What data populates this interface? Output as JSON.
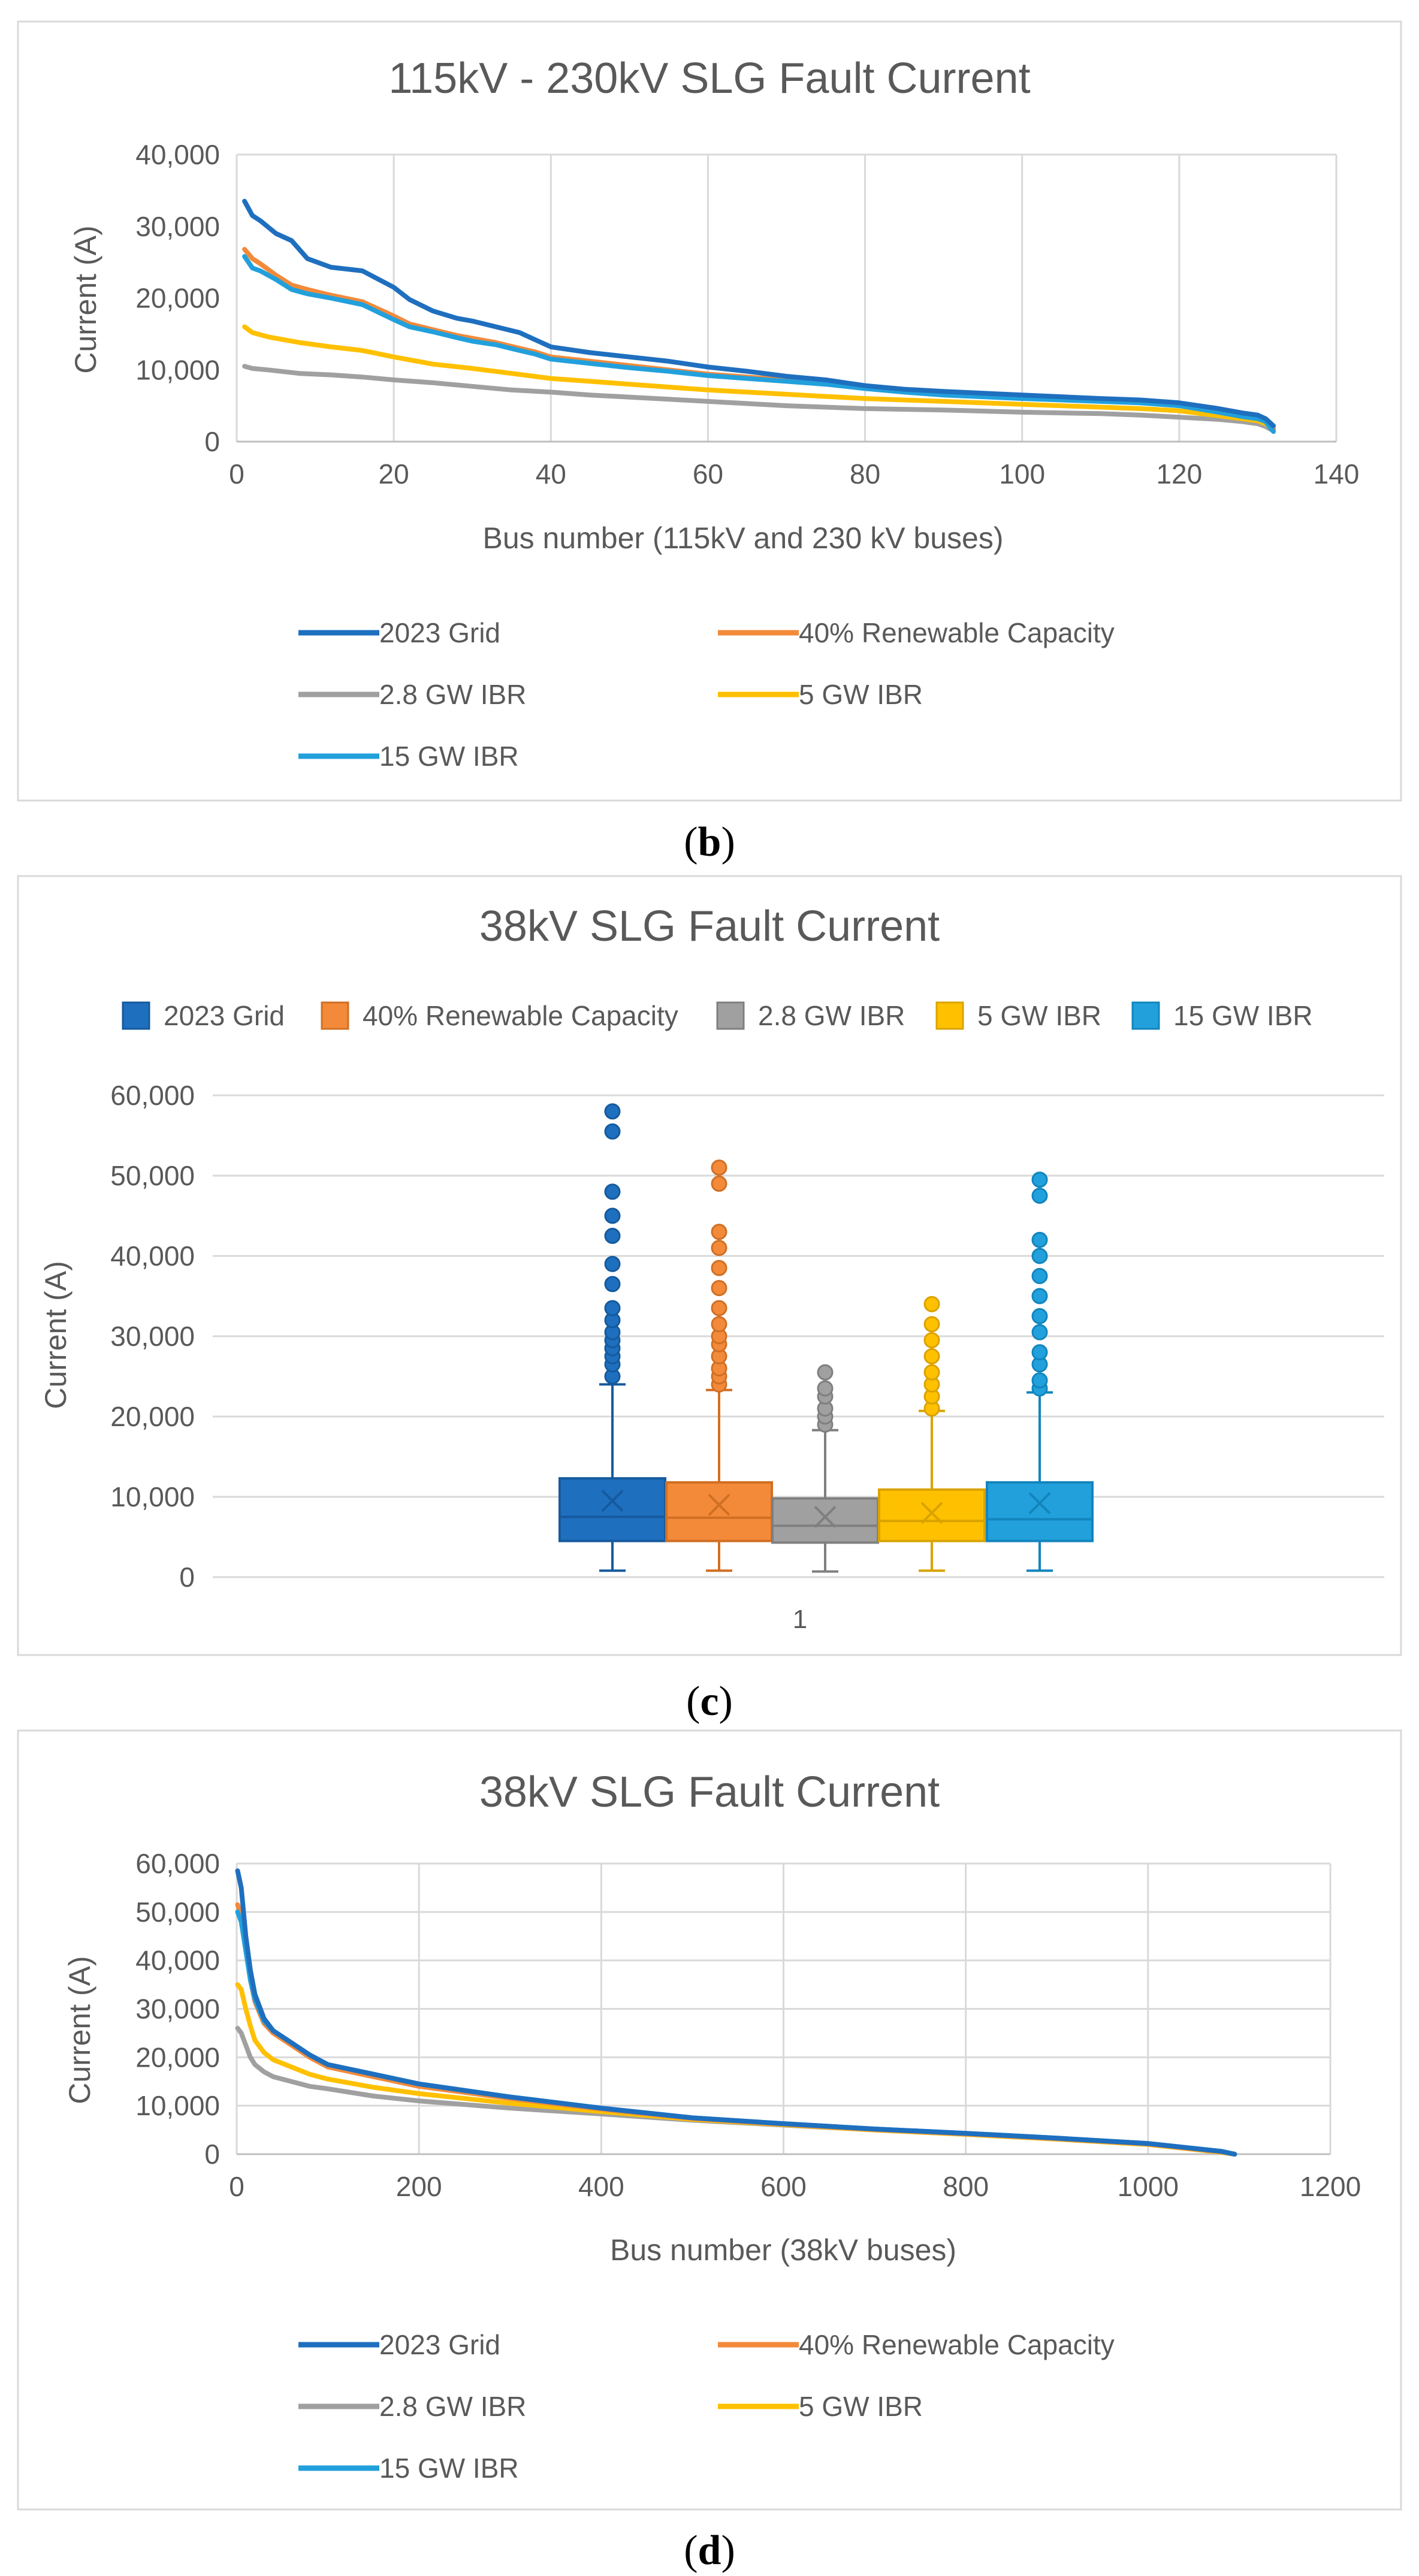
{
  "chart_data": [
    {
      "type": "line",
      "panel_label": "b",
      "title": "115kV - 230kV SLG Fault Current",
      "xlabel": "Bus number (115kV and 230 kV buses)",
      "ylabel": "Current (A)",
      "xlim": [
        0,
        140
      ],
      "ylim": [
        0,
        40000
      ],
      "xticks": [
        0,
        20,
        40,
        60,
        80,
        100,
        120,
        140
      ],
      "yticks": [
        0,
        10000,
        20000,
        30000,
        40000
      ],
      "ytick_labels": [
        "0",
        "10,000",
        "20,000",
        "30,000",
        "40,000"
      ],
      "grid": "vertical",
      "legend_position": "bottom",
      "series": [
        {
          "name": "2023 Grid",
          "color": "#1f6fbf",
          "x": [
            1,
            2,
            3,
            5,
            7,
            9,
            12,
            16,
            20,
            22,
            25,
            28,
            30,
            33,
            36,
            38,
            40,
            45,
            50,
            55,
            60,
            65,
            70,
            75,
            80,
            85,
            90,
            100,
            110,
            115,
            120,
            125,
            128,
            130,
            131,
            132
          ],
          "y": [
            33500,
            31500,
            30800,
            29000,
            28000,
            25500,
            24300,
            23800,
            21500,
            19800,
            18200,
            17200,
            16800,
            16000,
            15200,
            14200,
            13200,
            12400,
            11800,
            11200,
            10400,
            9800,
            9100,
            8600,
            7800,
            7300,
            7000,
            6500,
            6000,
            5800,
            5400,
            4600,
            4000,
            3700,
            3200,
            2200
          ]
        },
        {
          "name": "40% Renewable Capacity",
          "color": "#f28a3a",
          "x": [
            1,
            2,
            3,
            5,
            7,
            9,
            12,
            16,
            20,
            22,
            25,
            28,
            30,
            33,
            36,
            38,
            40,
            45,
            50,
            55,
            60,
            65,
            70,
            75,
            80,
            85,
            90,
            100,
            110,
            115,
            120,
            125,
            128,
            130,
            131,
            132
          ],
          "y": [
            26800,
            25500,
            24800,
            23200,
            21800,
            21200,
            20400,
            19500,
            17500,
            16400,
            15600,
            14800,
            14400,
            13800,
            13000,
            12500,
            11800,
            11200,
            10600,
            10000,
            9400,
            9000,
            8600,
            8200,
            7600,
            7100,
            6700,
            6200,
            5800,
            5600,
            5200,
            4300,
            3700,
            3400,
            3000,
            1700
          ]
        },
        {
          "name": "2.8 GW IBR",
          "color": "#a0a0a0",
          "x": [
            1,
            2,
            4,
            8,
            12,
            16,
            20,
            25,
            30,
            35,
            40,
            45,
            50,
            55,
            60,
            65,
            70,
            75,
            80,
            90,
            100,
            110,
            115,
            120,
            125,
            128,
            130,
            131,
            132
          ],
          "y": [
            10500,
            10200,
            10000,
            9500,
            9300,
            9000,
            8600,
            8200,
            7700,
            7200,
            6900,
            6500,
            6200,
            5900,
            5600,
            5300,
            5000,
            4800,
            4600,
            4400,
            4100,
            3900,
            3700,
            3400,
            3100,
            2800,
            2500,
            2100,
            1500
          ]
        },
        {
          "name": "5 GW IBR",
          "color": "#ffc000",
          "x": [
            1,
            2,
            4,
            8,
            12,
            16,
            20,
            25,
            30,
            35,
            40,
            45,
            50,
            55,
            60,
            65,
            70,
            75,
            80,
            90,
            100,
            110,
            115,
            120,
            125,
            128,
            130,
            131,
            132
          ],
          "y": [
            16000,
            15200,
            14600,
            13800,
            13200,
            12700,
            11800,
            10800,
            10200,
            9500,
            8800,
            8400,
            8000,
            7600,
            7200,
            6900,
            6600,
            6300,
            6000,
            5600,
            5200,
            4800,
            4600,
            4300,
            3600,
            3200,
            2900,
            2500,
            1800
          ]
        },
        {
          "name": "15 GW IBR",
          "color": "#22a0dc",
          "x": [
            1,
            2,
            3,
            5,
            7,
            9,
            12,
            16,
            20,
            22,
            25,
            28,
            30,
            33,
            36,
            38,
            40,
            45,
            50,
            55,
            60,
            65,
            70,
            75,
            80,
            85,
            90,
            100,
            110,
            115,
            120,
            125,
            128,
            130,
            131,
            132
          ],
          "y": [
            25800,
            24200,
            23800,
            22600,
            21200,
            20600,
            20000,
            19100,
            17000,
            16000,
            15300,
            14500,
            14000,
            13500,
            12700,
            12200,
            11500,
            10900,
            10300,
            9800,
            9200,
            8800,
            8400,
            8000,
            7400,
            6900,
            6500,
            6000,
            5600,
            5400,
            5000,
            4100,
            3500,
            3200,
            2800,
            1400
          ]
        }
      ]
    },
    {
      "type": "box",
      "panel_label": "c",
      "title": "38kV SLG Fault Current",
      "xlabel": "1",
      "ylabel": "Current (A)",
      "ylim": [
        0,
        60000
      ],
      "yticks": [
        0,
        10000,
        20000,
        30000,
        40000,
        50000,
        60000
      ],
      "ytick_labels": [
        "0",
        "10,000",
        "20,000",
        "30,000",
        "40,000",
        "50,000",
        "60,000"
      ],
      "grid": "horizontal",
      "legend_position": "top",
      "series": [
        {
          "name": "2023 Grid",
          "color": "#1f6fbf",
          "min": 800,
          "q1": 4500,
          "median": 7500,
          "q3": 12300,
          "max": 24000,
          "mean": 9500,
          "outliers": [
            25000,
            26500,
            27500,
            28500,
            29500,
            30500,
            32000,
            33500,
            36500,
            39000,
            42500,
            45000,
            48000,
            55500,
            58000
          ]
        },
        {
          "name": "40% Renewable Capacity",
          "color": "#f28a3a",
          "min": 800,
          "q1": 4500,
          "median": 7400,
          "q3": 11800,
          "max": 23300,
          "mean": 9000,
          "outliers": [
            24000,
            25000,
            26000,
            27500,
            29000,
            30000,
            31500,
            33500,
            36000,
            38500,
            41000,
            43000,
            49000,
            51000
          ]
        },
        {
          "name": "2.8 GW IBR",
          "color": "#a0a0a0",
          "min": 700,
          "q1": 4300,
          "median": 6400,
          "q3": 9800,
          "max": 18300,
          "mean": 7500,
          "outliers": [
            19000,
            20000,
            21000,
            22500,
            23500,
            25500
          ]
        },
        {
          "name": "5 GW IBR",
          "color": "#ffc000",
          "min": 800,
          "q1": 4500,
          "median": 7000,
          "q3": 10900,
          "max": 20700,
          "mean": 8000,
          "outliers": [
            21000,
            22500,
            24000,
            25500,
            27500,
            29500,
            31500,
            34000
          ]
        },
        {
          "name": "15 GW IBR",
          "color": "#22a0dc",
          "min": 800,
          "q1": 4500,
          "median": 7200,
          "q3": 11800,
          "max": 23000,
          "mean": 9200,
          "outliers": [
            23500,
            24500,
            26500,
            28000,
            30500,
            32500,
            35000,
            37500,
            40000,
            42000,
            47500,
            49500
          ]
        }
      ]
    },
    {
      "type": "line",
      "panel_label": "d",
      "title": "38kV SLG Fault Current",
      "xlabel": "Bus number (38kV buses)",
      "ylabel": "Current (A)",
      "xlim": [
        0,
        1200
      ],
      "ylim": [
        0,
        60000
      ],
      "xticks": [
        0,
        200,
        400,
        600,
        800,
        1000,
        1200
      ],
      "yticks": [
        0,
        10000,
        20000,
        30000,
        40000,
        50000,
        60000
      ],
      "ytick_labels": [
        "0",
        "10,000",
        "20,000",
        "30,000",
        "40,000",
        "50,000",
        "60,000"
      ],
      "grid": "both",
      "legend_position": "bottom",
      "series": [
        {
          "name": "2023 Grid",
          "color": "#1f6fbf",
          "x": [
            1,
            5,
            10,
            15,
            20,
            30,
            40,
            60,
            80,
            100,
            150,
            200,
            300,
            400,
            500,
            600,
            700,
            800,
            900,
            1000,
            1050,
            1080,
            1095
          ],
          "y": [
            58500,
            55000,
            45000,
            38000,
            33000,
            28000,
            25500,
            23000,
            20500,
            18500,
            16500,
            14500,
            11800,
            9500,
            7500,
            6300,
            5200,
            4300,
            3300,
            2200,
            1200,
            600,
            0
          ]
        },
        {
          "name": "40% Renewable Capacity",
          "color": "#f28a3a",
          "x": [
            1,
            5,
            10,
            15,
            20,
            30,
            40,
            60,
            80,
            100,
            150,
            200,
            300,
            400,
            500,
            600,
            700,
            800,
            900,
            1000,
            1050,
            1080,
            1095
          ],
          "y": [
            51500,
            49000,
            43000,
            36000,
            31500,
            27000,
            25000,
            22500,
            20000,
            18000,
            16000,
            14000,
            11500,
            9300,
            7400,
            6200,
            5100,
            4200,
            3200,
            2100,
            1100,
            500,
            0
          ]
        },
        {
          "name": "2.8 GW IBR",
          "color": "#a0a0a0",
          "x": [
            1,
            5,
            10,
            15,
            20,
            30,
            40,
            60,
            80,
            100,
            150,
            200,
            300,
            400,
            500,
            600,
            700,
            800,
            900,
            1000,
            1050,
            1080,
            1095
          ],
          "y": [
            26000,
            25000,
            22500,
            20000,
            18500,
            17000,
            16000,
            15000,
            14000,
            13500,
            12000,
            11000,
            9500,
            8300,
            7000,
            6000,
            5000,
            4100,
            3100,
            2000,
            1000,
            400,
            0
          ]
        },
        {
          "name": "5 GW IBR",
          "color": "#ffc000",
          "x": [
            1,
            5,
            10,
            15,
            20,
            30,
            40,
            60,
            80,
            100,
            150,
            200,
            300,
            400,
            500,
            600,
            700,
            800,
            900,
            1000,
            1050,
            1080,
            1095
          ],
          "y": [
            35000,
            34000,
            30000,
            26500,
            23500,
            21000,
            19500,
            18000,
            16500,
            15500,
            13800,
            12500,
            10500,
            8800,
            7200,
            6100,
            5000,
            4100,
            3100,
            2000,
            1000,
            400,
            0
          ]
        },
        {
          "name": "15 GW IBR",
          "color": "#22a0dc",
          "x": [
            1,
            5,
            10,
            15,
            20,
            30,
            40,
            60,
            80,
            100,
            150,
            200,
            300,
            400,
            500,
            600,
            700,
            800,
            900,
            1000,
            1050,
            1080,
            1095
          ],
          "y": [
            50000,
            48000,
            42000,
            36000,
            32000,
            27500,
            25500,
            23000,
            20500,
            18500,
            16500,
            14500,
            11800,
            9500,
            7500,
            6300,
            5200,
            4300,
            3300,
            2200,
            1200,
            600,
            0
          ]
        }
      ]
    }
  ]
}
